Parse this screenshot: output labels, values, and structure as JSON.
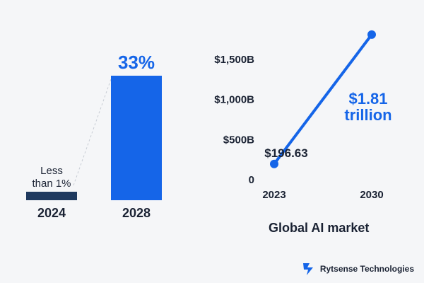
{
  "chart_data": [
    {
      "type": "bar",
      "categories": [
        "2024",
        "2028"
      ],
      "values": [
        1,
        33
      ],
      "data_labels": [
        "Less than 1%",
        "33%"
      ],
      "colors": [
        "#1f3a5f",
        "#1565e8"
      ],
      "ylim": [
        0,
        33
      ],
      "grid": false
    },
    {
      "type": "line",
      "title": "Global AI market",
      "x": [
        "2023",
        "2030"
      ],
      "series": [
        {
          "values": [
            196.63,
            1810
          ]
        }
      ],
      "data_labels": [
        "$196.63",
        "$1.81 trillion"
      ],
      "ytick_labels": [
        "0",
        "$500B",
        "$1,000B",
        "$1,500B"
      ],
      "yticks": [
        0,
        500,
        1000,
        1500
      ],
      "ylim": [
        0,
        1500
      ],
      "color": "#1565e8",
      "grid": false
    }
  ],
  "logo": {
    "name": "Rytsense Technologies",
    "icon": "rytsense-logo-icon",
    "color": "#1565e8"
  }
}
